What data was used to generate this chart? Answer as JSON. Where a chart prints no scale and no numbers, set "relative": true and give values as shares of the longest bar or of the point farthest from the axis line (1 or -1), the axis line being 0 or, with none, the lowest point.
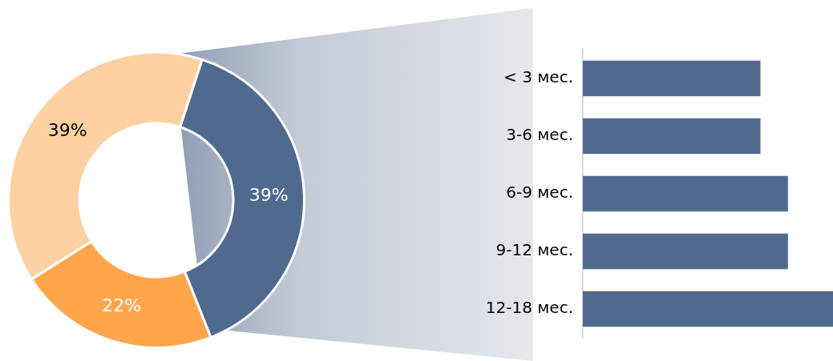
{
  "chart_data": [
    {
      "type": "donut",
      "categories": [
        null,
        null,
        null
      ],
      "values": [
        39,
        22,
        39
      ],
      "colors": [
        "#506a8e",
        "#ffa64d",
        "#fdd0a2"
      ],
      "value_labels": [
        "39%",
        "22%",
        "39%"
      ],
      "legend": false
    },
    {
      "type": "bar",
      "orientation": "horizontal",
      "relative": true,
      "categories": [
        "< 3 мес.",
        "3-6 мес.",
        "6-9 мес.",
        "9-12 мес.",
        "12-18 мес."
      ],
      "values": [
        0.71,
        0.71,
        0.82,
        0.82,
        1
      ],
      "color": "#506a8e",
      "legend": false,
      "grid": false
    }
  ]
}
